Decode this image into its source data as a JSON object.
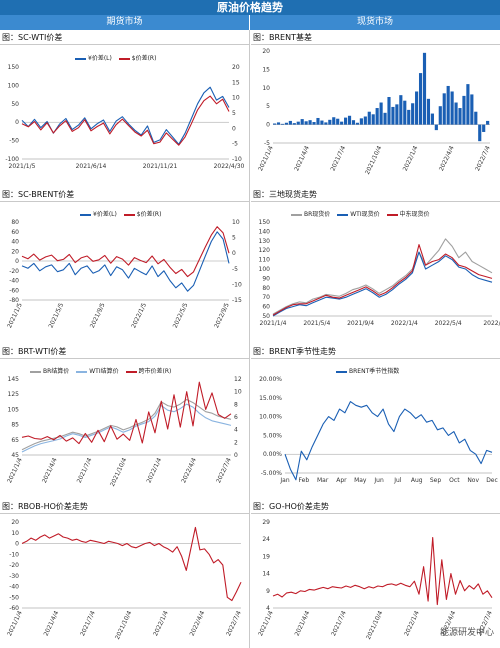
{
  "page": {
    "title": "原油价格趋势",
    "left_section": "期货市场",
    "right_section": "现货市场",
    "watermark": "能源研发中心"
  },
  "chart_data": [
    {
      "id": "sc-wti",
      "panel_title": "图：SC-WTI价差",
      "type": "line",
      "x_ticks": [
        "2021/1/5",
        "2021/6/14",
        "2021/11/21",
        "2022/4/30"
      ],
      "y_left_ticks": [
        -100,
        -50,
        0,
        50,
        100,
        150
      ],
      "y_right_ticks": [
        -10,
        -5,
        0,
        5,
        10,
        15,
        20
      ],
      "series": [
        {
          "name": "¥价差(L)",
          "axis": "left",
          "color": "#1a5fb4",
          "values": [
            5,
            -12,
            8,
            -15,
            2,
            -30,
            -5,
            10,
            -20,
            -8,
            12,
            -18,
            -4,
            6,
            -25,
            3,
            15,
            -5,
            -22,
            -35,
            -10,
            -55,
            -48,
            -20,
            -40,
            -60,
            -30,
            10,
            50,
            80,
            95,
            60,
            70,
            40
          ]
        },
        {
          "name": "$价差(R)",
          "axis": "right",
          "color": "#c01c28",
          "values": [
            1.5,
            0.5,
            2.2,
            -0.5,
            1.8,
            -1.5,
            0.8,
            2.5,
            -1.0,
            0.2,
            2.8,
            -0.8,
            0.6,
            1.7,
            -1.8,
            1.2,
            3.0,
            0.9,
            -1.2,
            -2.5,
            -0.6,
            -5.0,
            -4.5,
            -1.5,
            -3.5,
            -5.5,
            -2.8,
            1.5,
            6.0,
            9.0,
            10.5,
            8.0,
            9.5,
            5.5
          ]
        }
      ]
    },
    {
      "id": "brent-basis",
      "panel_title": "图：BRENT基差",
      "type": "bar",
      "x_ticks": [
        "2021/1/4",
        "2021/4/4",
        "2021/7/4",
        "2021/10/4",
        "2022/1/4",
        "2022/4/4",
        "2022/7/4"
      ],
      "y_ticks": [
        -5,
        0,
        5,
        10,
        15,
        20
      ],
      "color": "#1a5fb4",
      "values": [
        0.3,
        0.6,
        0.2,
        0.5,
        1.0,
        0.4,
        0.8,
        1.5,
        0.9,
        1.2,
        0.7,
        1.8,
        1.1,
        0.6,
        1.3,
        2.0,
        1.6,
        0.8,
        1.9,
        2.4,
        1.2,
        0.5,
        1.7,
        2.2,
        3.5,
        2.8,
        4.5,
        6.0,
        3.2,
        7.5,
        4.8,
        5.5,
        8.0,
        6.5,
        4.0,
        5.8,
        9.0,
        14.0,
        19.5,
        7.0,
        3.0,
        -1.5,
        5.0,
        8.5,
        10.5,
        9.0,
        6.0,
        4.5,
        7.8,
        11.0,
        8.2,
        3.5,
        -4.5,
        -2.0,
        1.0
      ]
    },
    {
      "id": "sc-brent",
      "panel_title": "图：SC-BRENT价差",
      "type": "line",
      "x_ticks": [
        "2021/1/5",
        "2021/5/5",
        "2021/9/5",
        "2022/1/5",
        "2022/5/5",
        "2022/9/5"
      ],
      "y_left_ticks": [
        -80,
        -60,
        -40,
        -20,
        0,
        20,
        40,
        60,
        80
      ],
      "y_right_ticks": [
        -15,
        -10,
        -5,
        0,
        5,
        10
      ],
      "series": [
        {
          "name": "¥价差(L)",
          "axis": "left",
          "color": "#1a5fb4",
          "values": [
            -10,
            -15,
            -5,
            -20,
            -12,
            -8,
            -22,
            -18,
            -5,
            -28,
            -15,
            -10,
            -25,
            -20,
            -8,
            -30,
            -12,
            -18,
            -35,
            -15,
            -22,
            -28,
            -10,
            -32,
            -20,
            -40,
            -55,
            -45,
            -62,
            -50,
            -20,
            10,
            40,
            60,
            45,
            -5
          ]
        },
        {
          "name": "$价差(R)",
          "axis": "right",
          "color": "#c01c28",
          "values": [
            -1.0,
            -1.8,
            -0.3,
            -2.2,
            -1.2,
            -0.6,
            -2.4,
            -2.0,
            -0.4,
            -3.0,
            -1.5,
            -0.9,
            -2.6,
            -2.1,
            -0.7,
            -3.2,
            -1.1,
            -1.9,
            -3.8,
            -1.4,
            -2.3,
            -3.0,
            -0.9,
            -3.4,
            -2.0,
            -4.5,
            -6.5,
            -5.2,
            -7.5,
            -6.0,
            -2.0,
            2.0,
            5.8,
            8.5,
            6.5,
            0.0
          ]
        }
      ]
    },
    {
      "id": "three-spot",
      "panel_title": "图：三地现货走势",
      "type": "line",
      "x_ticks": [
        "2021/1/4",
        "2021/5/4",
        "2021/9/4",
        "2022/1/4",
        "2022/5/4",
        "2022/"
      ],
      "y_ticks": [
        50,
        60,
        70,
        80,
        90,
        100,
        110,
        120,
        130,
        140,
        150
      ],
      "series": [
        {
          "name": "BR现货价",
          "color": "#a0a0a0",
          "values": [
            52,
            56,
            60,
            63,
            65,
            64,
            68,
            70,
            73,
            72,
            71,
            74,
            78,
            80,
            83,
            79,
            74,
            78,
            82,
            88,
            93,
            100,
            118,
            104,
            112,
            120,
            132,
            124,
            112,
            118,
            108,
            104,
            100,
            96
          ]
        },
        {
          "name": "WTI现货价",
          "color": "#1a5fb4",
          "values": [
            50,
            54,
            58,
            60,
            62,
            61,
            64,
            67,
            70,
            69,
            68,
            70,
            73,
            76,
            79,
            75,
            70,
            73,
            78,
            84,
            89,
            96,
            118,
            100,
            104,
            108,
            114,
            110,
            102,
            100,
            94,
            90,
            88,
            86
          ]
        },
        {
          "name": "中东现货价",
          "color": "#c01c28",
          "values": [
            51,
            55,
            59,
            62,
            63,
            63,
            66,
            69,
            72,
            70,
            69,
            72,
            75,
            78,
            81,
            77,
            72,
            75,
            80,
            86,
            91,
            98,
            126,
            104,
            108,
            110,
            116,
            112,
            104,
            102,
            98,
            94,
            92,
            90
          ]
        }
      ]
    },
    {
      "id": "brt-wti",
      "panel_title": "图：BRT-WTI价差",
      "type": "line",
      "x_ticks": [
        "2021/1/4",
        "2021/4/4",
        "2021/7/4",
        "2021/10/4",
        "2022/1/4",
        "2022/4/4",
        "2022/7/4"
      ],
      "y_left_ticks": [
        45,
        65,
        85,
        105,
        125,
        145
      ],
      "y_right_ticks": [
        0,
        2,
        4,
        6,
        8,
        10,
        12
      ],
      "series": [
        {
          "name": "BR结算价",
          "axis": "left",
          "color": "#a0a0a0",
          "values": [
            52,
            56,
            60,
            63,
            65,
            67,
            69,
            72,
            75,
            73,
            70,
            73,
            76,
            80,
            84,
            82,
            78,
            81,
            85,
            88,
            92,
            100,
            115,
            110,
            108,
            112,
            118,
            114,
            108,
            102,
            100,
            96,
            94,
            92
          ]
        },
        {
          "name": "WTI结算价",
          "axis": "left",
          "color": "#8ab4e0",
          "values": [
            49,
            53,
            57,
            60,
            62,
            64,
            66,
            70,
            73,
            71,
            68,
            71,
            74,
            78,
            82,
            79,
            75,
            78,
            83,
            86,
            89,
            96,
            110,
            104,
            102,
            106,
            112,
            108,
            100,
            94,
            90,
            88,
            86,
            84
          ]
        },
        {
          "name": "跨市价差(R)",
          "axis": "right",
          "color": "#c01c28",
          "values": [
            2.8,
            3.0,
            2.6,
            2.5,
            2.9,
            2.4,
            3.1,
            2.2,
            2.7,
            1.8,
            3.4,
            2.0,
            3.9,
            2.1,
            4.6,
            2.5,
            3.3,
            2.3,
            5.6,
            1.9,
            6.8,
            3.5,
            8.5,
            4.1,
            9.5,
            4.4,
            10.0,
            4.6,
            11.5,
            7.2,
            9.8,
            6.4,
            5.8,
            6.5
          ]
        }
      ]
    },
    {
      "id": "brent-season",
      "panel_title": "图：BRENT季节性走势",
      "type": "line",
      "x_ticks": [
        "Jan",
        "Feb",
        "Mar",
        "Apr",
        "May",
        "Jun",
        "Jul",
        "Aug",
        "Sep",
        "Oct",
        "Nov",
        "Dec"
      ],
      "y_ticks": [
        "-5.00%",
        "0.00%",
        "5.00%",
        "10.00%",
        "15.00%",
        "20.00%"
      ],
      "ylim": [
        -5,
        20
      ],
      "series": [
        {
          "name": "BRENT季节性指数",
          "color": "#1a5fb4",
          "values": [
            0.0,
            -4.0,
            -6.8,
            0.8,
            -1.5,
            2.0,
            5.0,
            8.0,
            10.0,
            9.0,
            12.0,
            11.0,
            14.0,
            13.0,
            12.5,
            13.0,
            11.0,
            10.0,
            12.0,
            8.0,
            6.0,
            10.0,
            12.0,
            11.0,
            9.5,
            10.5,
            8.5,
            9.0,
            6.5,
            7.0,
            5.0,
            6.0,
            3.0,
            4.0,
            1.0,
            0.0,
            -2.5,
            1.0,
            0.5
          ]
        }
      ]
    },
    {
      "id": "rbob-ho",
      "panel_title": "图：RBOB-HO价差走势",
      "type": "line",
      "x_ticks": [
        "2021/1/4",
        "2021/4/4",
        "2021/7/4",
        "2021/10/4",
        "2022/1/4",
        "2022/4/4",
        "2022/7/4"
      ],
      "y_ticks": [
        -60,
        -50,
        -40,
        -30,
        -20,
        -10,
        0,
        10,
        20
      ],
      "ylim": [
        -60,
        20
      ],
      "series": [
        {
          "name": "RBOB-HO",
          "color": "#c01c28",
          "values": [
            0,
            2,
            5,
            3,
            6,
            8,
            5,
            7,
            9,
            6,
            5,
            3,
            4,
            2,
            1,
            3,
            2,
            1,
            0,
            2,
            1,
            0,
            -2,
            0,
            -3,
            -4,
            -2,
            0,
            1,
            -2,
            0,
            -3,
            -5,
            -8,
            -3,
            -12,
            -25,
            -5,
            15,
            -6,
            -5,
            -10,
            -18,
            -15,
            -20,
            -50,
            -53,
            -45,
            -36
          ]
        }
      ]
    },
    {
      "id": "go-ho",
      "panel_title": "图：GO-HO价差走势",
      "type": "line",
      "x_ticks": [
        "2021/1/4",
        "2021/4/4",
        "2021/7/4",
        "2021/10/4",
        "2022/1/4",
        "2022/4/4",
        "2022/7/4"
      ],
      "y_ticks": [
        4,
        9,
        14,
        19,
        24,
        29
      ],
      "ylim": [
        4,
        29
      ],
      "series": [
        {
          "name": "GO-HO",
          "color": "#c01c28",
          "values": [
            7.5,
            8.0,
            7.2,
            8.4,
            8.6,
            8.2,
            9.0,
            8.8,
            9.4,
            9.2,
            9.6,
            10.0,
            9.6,
            10.2,
            10.0,
            9.8,
            10.4,
            10.0,
            10.6,
            10.2,
            9.6,
            10.2,
            9.8,
            10.4,
            10.2,
            10.8,
            11.0,
            10.6,
            11.2,
            10.6,
            10.2,
            11.8,
            8.0,
            16.0,
            6.0,
            24.5,
            5.0,
            18.0,
            6.5,
            14.0,
            8.0,
            12.0,
            9.0,
            10.5,
            9.5,
            11.0,
            8.0,
            9.0,
            7.0
          ]
        }
      ]
    }
  ]
}
